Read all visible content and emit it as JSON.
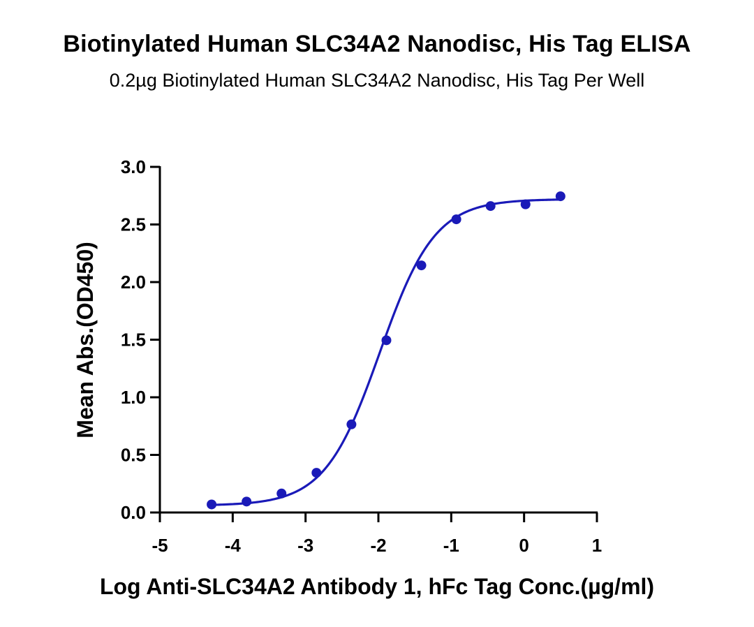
{
  "chart_data": {
    "type": "scatter",
    "title": "Biotinylated Human SLC34A2 Nanodisc, His Tag ELISA",
    "subtitle": "0.2µg Biotinylated Human SLC34A2 Nanodisc, His Tag Per Well",
    "xlabel": "Log Anti-SLC34A2 Antibody 1, hFc Tag Conc.(µg/ml)",
    "ylabel": "Mean Abs.(OD450)",
    "xlim": [
      -5,
      1
    ],
    "ylim": [
      0,
      3
    ],
    "x_ticks": [
      "-5",
      "-4",
      "-3",
      "-2",
      "-1",
      "0",
      "1"
    ],
    "y_ticks": [
      "0.0",
      "0.5",
      "1.0",
      "1.5",
      "2.0",
      "2.5",
      "3.0"
    ],
    "grid": false,
    "color": "#1a1ab8",
    "series": [
      {
        "x": [
          -4.29,
          -3.81,
          -3.33,
          -2.85,
          -2.37,
          -1.89,
          -1.41,
          -0.93,
          -0.46,
          0.02,
          0.5
        ],
        "values": [
          0.07,
          0.095,
          0.165,
          0.345,
          0.765,
          1.495,
          2.145,
          2.545,
          2.66,
          2.675,
          2.745
        ]
      }
    ],
    "fit": {
      "type": "4PL",
      "bottom": 0.06,
      "top": 2.72,
      "log_ec50": -1.98,
      "hill_slope": 1.15
    }
  }
}
